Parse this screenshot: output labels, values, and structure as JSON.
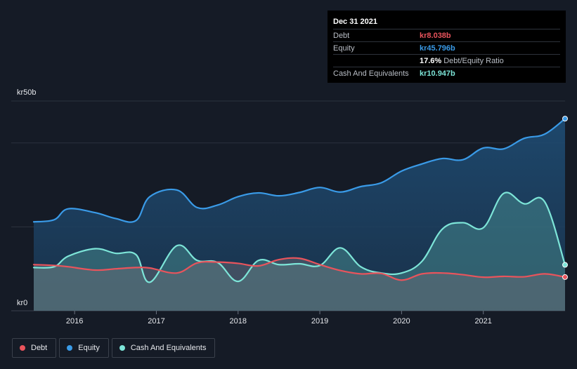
{
  "tooltip": {
    "date": "Dec 31 2021",
    "rows": [
      {
        "label": "Debt",
        "value": "kr8.038b"
      },
      {
        "label": "Equity",
        "value": "kr45.796b"
      },
      {
        "label": "",
        "value": "17.6%",
        "sub": "Debt/Equity Ratio"
      },
      {
        "label": "Cash And Equivalents",
        "value": "kr10.947b"
      }
    ]
  },
  "legend": [
    {
      "label": "Debt",
      "color": "#e9545c"
    },
    {
      "label": "Equity",
      "color": "#3a9be8"
    },
    {
      "label": "Cash And Equivalents",
      "color": "#7de5d8"
    }
  ],
  "chart_data": {
    "type": "area",
    "y_top_label": "kr50b",
    "y_bottom_label": "kr0",
    "ylim": [
      0,
      50
    ],
    "xlim": [
      2015.5,
      2022.0
    ],
    "x_ticks": [
      2016,
      2017,
      2018,
      2019,
      2020,
      2021
    ],
    "x_tick_labels": [
      "2016",
      "2017",
      "2018",
      "2019",
      "2020",
      "2021"
    ],
    "grid": true,
    "legend_position": "bottom-left",
    "series": [
      {
        "name": "Equity",
        "color": "#3a9be8",
        "points": [
          [
            2015.5,
            21.2
          ],
          [
            2015.75,
            21.7
          ],
          [
            2015.92,
            24.3
          ],
          [
            2016.25,
            23.4
          ],
          [
            2016.5,
            22.0
          ],
          [
            2016.75,
            21.5
          ],
          [
            2016.92,
            27.2
          ],
          [
            2017.25,
            28.8
          ],
          [
            2017.5,
            24.6
          ],
          [
            2017.75,
            25.2
          ],
          [
            2018.0,
            27.2
          ],
          [
            2018.25,
            28.1
          ],
          [
            2018.5,
            27.4
          ],
          [
            2018.75,
            28.2
          ],
          [
            2019.0,
            29.4
          ],
          [
            2019.25,
            28.3
          ],
          [
            2019.5,
            29.6
          ],
          [
            2019.75,
            30.5
          ],
          [
            2020.0,
            33.3
          ],
          [
            2020.25,
            35.0
          ],
          [
            2020.5,
            36.3
          ],
          [
            2020.75,
            36.0
          ],
          [
            2021.0,
            38.8
          ],
          [
            2021.25,
            38.6
          ],
          [
            2021.5,
            41.1
          ],
          [
            2021.75,
            42.1
          ],
          [
            2022.0,
            45.796
          ]
        ]
      },
      {
        "name": "Cash And Equivalents",
        "color": "#7de5d8",
        "points": [
          [
            2015.5,
            10.3
          ],
          [
            2015.75,
            10.5
          ],
          [
            2015.92,
            13.0
          ],
          [
            2016.25,
            14.8
          ],
          [
            2016.5,
            13.7
          ],
          [
            2016.75,
            13.4
          ],
          [
            2016.92,
            6.8
          ],
          [
            2017.25,
            15.5
          ],
          [
            2017.5,
            12.0
          ],
          [
            2017.75,
            11.5
          ],
          [
            2018.0,
            7.0
          ],
          [
            2018.25,
            12.0
          ],
          [
            2018.5,
            11.0
          ],
          [
            2018.75,
            11.2
          ],
          [
            2019.0,
            10.8
          ],
          [
            2019.25,
            15.0
          ],
          [
            2019.5,
            10.5
          ],
          [
            2019.75,
            9.0
          ],
          [
            2020.0,
            9.0
          ],
          [
            2020.25,
            11.8
          ],
          [
            2020.5,
            19.5
          ],
          [
            2020.75,
            21.0
          ],
          [
            2021.0,
            19.8
          ],
          [
            2021.25,
            28.0
          ],
          [
            2021.5,
            25.5
          ],
          [
            2021.75,
            26.0
          ],
          [
            2022.0,
            10.947
          ]
        ]
      },
      {
        "name": "Debt",
        "color": "#e9545c",
        "points": [
          [
            2015.5,
            11.0
          ],
          [
            2015.75,
            10.8
          ],
          [
            2015.92,
            10.5
          ],
          [
            2016.25,
            9.7
          ],
          [
            2016.5,
            10.0
          ],
          [
            2016.75,
            10.3
          ],
          [
            2016.92,
            10.2
          ],
          [
            2017.25,
            9.0
          ],
          [
            2017.5,
            11.4
          ],
          [
            2017.75,
            11.6
          ],
          [
            2018.0,
            11.3
          ],
          [
            2018.25,
            10.7
          ],
          [
            2018.5,
            12.2
          ],
          [
            2018.75,
            12.5
          ],
          [
            2019.0,
            11.0
          ],
          [
            2019.25,
            9.6
          ],
          [
            2019.5,
            8.8
          ],
          [
            2019.75,
            8.9
          ],
          [
            2020.0,
            7.3
          ],
          [
            2020.25,
            8.8
          ],
          [
            2020.5,
            9.0
          ],
          [
            2020.75,
            8.6
          ],
          [
            2021.0,
            8.0
          ],
          [
            2021.25,
            8.2
          ],
          [
            2021.5,
            8.1
          ],
          [
            2021.75,
            8.8
          ],
          [
            2022.0,
            8.038
          ]
        ]
      }
    ]
  }
}
